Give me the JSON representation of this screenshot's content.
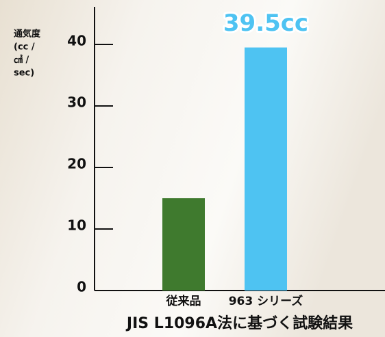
{
  "chart_data": {
    "type": "bar",
    "y_label_lines": [
      "通気度",
      "(cc /",
      "㎠ /",
      "sec)"
    ],
    "categories": [
      "従来品",
      "963 シリーズ"
    ],
    "values": [
      15,
      39.5
    ],
    "value_labels": [
      null,
      "39.5cc"
    ],
    "colors": [
      "#3f7a2e",
      "#4ec3f2"
    ],
    "ylim": [
      0,
      45
    ],
    "yticks": [
      0,
      10,
      20,
      30,
      40
    ],
    "footnote": "JIS L1096A法に基づく試験結果"
  }
}
